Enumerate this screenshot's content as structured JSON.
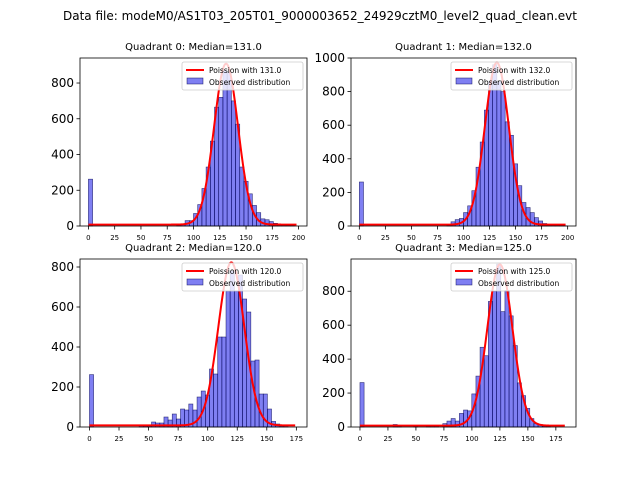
{
  "suptitle": "Data file: modeM0/AS1T03_205T01_9000003652_24929cztM0_level2_quad_clean.evt",
  "chart_data": [
    {
      "type": "bar",
      "title": "Quadrant 0: Median=131.0",
      "median": 131.0,
      "xlabel": "",
      "ylabel": "",
      "xlim": [
        -8,
        208
      ],
      "ylim": [
        0,
        940
      ],
      "xticks": [
        0,
        25,
        50,
        75,
        100,
        125,
        150,
        175,
        200
      ],
      "yticks": [
        0,
        200,
        400,
        600,
        800
      ],
      "legend": {
        "position": "top-right",
        "entries": [
          "Poission with 131.0",
          "Observed distribution"
        ]
      },
      "bin_width": 4,
      "bins": [
        [
          0,
          262
        ],
        [
          84,
          8
        ],
        [
          88,
          12
        ],
        [
          92,
          30
        ],
        [
          96,
          30
        ],
        [
          100,
          70
        ],
        [
          104,
          120
        ],
        [
          108,
          210
        ],
        [
          112,
          330
        ],
        [
          116,
          475
        ],
        [
          120,
          665
        ],
        [
          124,
          720
        ],
        [
          128,
          870
        ],
        [
          132,
          860
        ],
        [
          136,
          700
        ],
        [
          140,
          570
        ],
        [
          144,
          330
        ],
        [
          148,
          250
        ],
        [
          152,
          180
        ],
        [
          156,
          115
        ],
        [
          160,
          75
        ],
        [
          164,
          40
        ],
        [
          168,
          35
        ],
        [
          172,
          25
        ],
        [
          176,
          15
        ],
        [
          180,
          8
        ],
        [
          184,
          4
        ],
        [
          188,
          2
        ],
        [
          192,
          1
        ]
      ],
      "poisson_peak": 900,
      "poisson_lambda": 131.0
    },
    {
      "type": "bar",
      "title": "Quadrant 1: Median=132.0",
      "median": 132.0,
      "xlabel": "",
      "ylabel": "",
      "xlim": [
        -8,
        208
      ],
      "ylim": [
        0,
        1000
      ],
      "xticks": [
        0,
        25,
        50,
        75,
        100,
        125,
        150,
        175,
        200
      ],
      "yticks": [
        0,
        200,
        400,
        600,
        800,
        1000
      ],
      "legend": {
        "position": "top-right",
        "entries": [
          "Poission with 132.0",
          "Observed distribution"
        ]
      },
      "bin_width": 4,
      "bins": [
        [
          0,
          262
        ],
        [
          84,
          10
        ],
        [
          88,
          25
        ],
        [
          92,
          38
        ],
        [
          96,
          45
        ],
        [
          100,
          80
        ],
        [
          104,
          120
        ],
        [
          108,
          210
        ],
        [
          112,
          350
        ],
        [
          116,
          500
        ],
        [
          120,
          690
        ],
        [
          124,
          860
        ],
        [
          128,
          960
        ],
        [
          132,
          860
        ],
        [
          136,
          800
        ],
        [
          140,
          620
        ],
        [
          144,
          540
        ],
        [
          148,
          370
        ],
        [
          152,
          240
        ],
        [
          156,
          140
        ],
        [
          160,
          110
        ],
        [
          164,
          80
        ],
        [
          168,
          50
        ],
        [
          172,
          30
        ],
        [
          176,
          15
        ],
        [
          180,
          8
        ],
        [
          184,
          4
        ],
        [
          188,
          2
        ],
        [
          192,
          1
        ],
        [
          196,
          1
        ]
      ],
      "poisson_peak": 965,
      "poisson_lambda": 132.0
    },
    {
      "type": "bar",
      "title": "Quadrant 2: Median=120.0",
      "median": 120.0,
      "xlabel": "",
      "ylabel": "",
      "xlim": [
        -8,
        184
      ],
      "ylim": [
        0,
        840
      ],
      "xticks": [
        0,
        25,
        50,
        75,
        100,
        125,
        150,
        175
      ],
      "yticks": [
        0,
        200,
        400,
        600,
        800
      ],
      "legend": {
        "position": "top-right",
        "entries": [
          "Poission with 120.0",
          "Observed distribution"
        ]
      },
      "bin_width": 3.5,
      "bins": [
        [
          0,
          262
        ],
        [
          42,
          8
        ],
        [
          45.5,
          5
        ],
        [
          49,
          5
        ],
        [
          52.5,
          25
        ],
        [
          56,
          20
        ],
        [
          59.5,
          20
        ],
        [
          63,
          50
        ],
        [
          66.5,
          35
        ],
        [
          70,
          65
        ],
        [
          73.5,
          40
        ],
        [
          77,
          90
        ],
        [
          80.5,
          85
        ],
        [
          84,
          115
        ],
        [
          87.5,
          85
        ],
        [
          91,
          150
        ],
        [
          94.5,
          180
        ],
        [
          98,
          160
        ],
        [
          101.5,
          290
        ],
        [
          105,
          265
        ],
        [
          108.5,
          450
        ],
        [
          112,
          450
        ],
        [
          115.5,
          680
        ],
        [
          119,
          780
        ],
        [
          122.5,
          680
        ],
        [
          126,
          760
        ],
        [
          129.5,
          640
        ],
        [
          133,
          575
        ],
        [
          136.5,
          330
        ],
        [
          140,
          335
        ],
        [
          143.5,
          165
        ],
        [
          147,
          165
        ],
        [
          150.5,
          90
        ],
        [
          154,
          28
        ],
        [
          157.5,
          15
        ],
        [
          161,
          5
        ],
        [
          164.5,
          2
        ]
      ],
      "poisson_peak": 815,
      "poisson_lambda": 120.0
    },
    {
      "type": "bar",
      "title": "Quadrant 3: Median=125.0",
      "median": 125.0,
      "xlabel": "",
      "ylabel": "",
      "xlim": [
        -8,
        193
      ],
      "ylim": [
        0,
        990
      ],
      "xticks": [
        0,
        25,
        50,
        75,
        100,
        125,
        150,
        175
      ],
      "yticks": [
        0,
        200,
        400,
        600,
        800
      ],
      "legend": {
        "position": "top-right",
        "entries": [
          "Poission with 125.0",
          "Observed distribution"
        ]
      },
      "bin_width": 3.7,
      "bins": [
        [
          0,
          262
        ],
        [
          29.6,
          15
        ],
        [
          33.3,
          8
        ],
        [
          48,
          10
        ],
        [
          59.2,
          10
        ],
        [
          63,
          10
        ],
        [
          66.6,
          10
        ],
        [
          74,
          20
        ],
        [
          77.7,
          35
        ],
        [
          81.4,
          50
        ],
        [
          85.1,
          35
        ],
        [
          88.8,
          80
        ],
        [
          92.5,
          100
        ],
        [
          96.2,
          95
        ],
        [
          99.9,
          195
        ],
        [
          103.6,
          300
        ],
        [
          107.3,
          470
        ],
        [
          111,
          420
        ],
        [
          114.7,
          740
        ],
        [
          118.4,
          800
        ],
        [
          122.1,
          960
        ],
        [
          125.8,
          680
        ],
        [
          129.5,
          805
        ],
        [
          133.2,
          655
        ],
        [
          136.9,
          480
        ],
        [
          140.6,
          260
        ],
        [
          144.3,
          185
        ],
        [
          148,
          110
        ],
        [
          151.7,
          50
        ],
        [
          155.4,
          20
        ],
        [
          159.1,
          15
        ],
        [
          162.8,
          5
        ],
        [
          166.5,
          2
        ]
      ],
      "poisson_peak": 950,
      "poisson_lambda": 125.0
    }
  ]
}
